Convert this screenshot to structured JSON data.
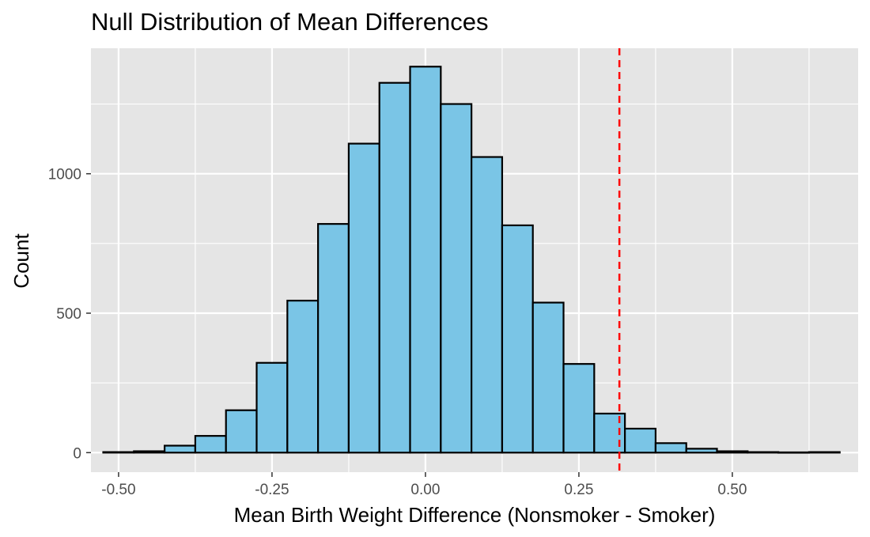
{
  "chart_data": {
    "type": "bar",
    "subtype": "histogram",
    "title": "Null Distribution of Mean Differences",
    "xlabel": "Mean Birth Weight Difference (Nonsmoker - Smoker)",
    "ylabel": "Count",
    "xlim": [
      -0.545,
      0.705
    ],
    "ylim": [
      -70,
      1450
    ],
    "x_ticks": [
      {
        "value": -0.5,
        "label": "-0.50"
      },
      {
        "value": -0.25,
        "label": "-0.25"
      },
      {
        "value": 0,
        "label": "0.00"
      },
      {
        "value": 0.25,
        "label": "0.25"
      },
      {
        "value": 0.5,
        "label": "0.50"
      }
    ],
    "y_ticks": [
      {
        "value": 0,
        "label": "0"
      },
      {
        "value": 500,
        "label": "500"
      },
      {
        "value": 1000,
        "label": "1000"
      }
    ],
    "grid": true,
    "bins": [
      {
        "x0": -0.525,
        "x1": -0.475,
        "count": 2
      },
      {
        "x0": -0.475,
        "x1": -0.425,
        "count": 5
      },
      {
        "x0": -0.425,
        "x1": -0.375,
        "count": 25
      },
      {
        "x0": -0.375,
        "x1": -0.325,
        "count": 60
      },
      {
        "x0": -0.325,
        "x1": -0.275,
        "count": 152
      },
      {
        "x0": -0.275,
        "x1": -0.225,
        "count": 322
      },
      {
        "x0": -0.225,
        "x1": -0.175,
        "count": 545
      },
      {
        "x0": -0.175,
        "x1": -0.125,
        "count": 820
      },
      {
        "x0": -0.125,
        "x1": -0.075,
        "count": 1108
      },
      {
        "x0": -0.075,
        "x1": -0.025,
        "count": 1326
      },
      {
        "x0": -0.025,
        "x1": 0.025,
        "count": 1384
      },
      {
        "x0": 0.025,
        "x1": 0.075,
        "count": 1250
      },
      {
        "x0": 0.075,
        "x1": 0.125,
        "count": 1060
      },
      {
        "x0": 0.125,
        "x1": 0.175,
        "count": 815
      },
      {
        "x0": 0.175,
        "x1": 0.225,
        "count": 538
      },
      {
        "x0": 0.225,
        "x1": 0.275,
        "count": 318
      },
      {
        "x0": 0.275,
        "x1": 0.325,
        "count": 140
      },
      {
        "x0": 0.325,
        "x1": 0.375,
        "count": 86
      },
      {
        "x0": 0.375,
        "x1": 0.425,
        "count": 34
      },
      {
        "x0": 0.425,
        "x1": 0.475,
        "count": 14
      },
      {
        "x0": 0.475,
        "x1": 0.525,
        "count": 5
      },
      {
        "x0": 0.525,
        "x1": 0.575,
        "count": 2
      },
      {
        "x0": 0.575,
        "x1": 0.625,
        "count": 1
      },
      {
        "x0": 0.625,
        "x1": 0.675,
        "count": 2
      }
    ],
    "reference_line": {
      "x": 0.316,
      "color": "#ff0000",
      "style": "dashed"
    },
    "colors": {
      "bar_fill": "#7ac5e6",
      "bar_stroke": "#000000",
      "panel_background": "#e5e5e5",
      "grid": "#ffffff"
    }
  }
}
